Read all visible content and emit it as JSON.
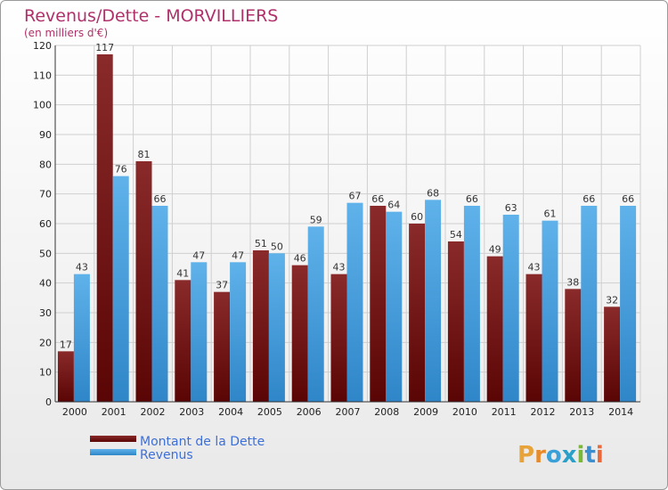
{
  "chart_data": {
    "type": "bar",
    "title": "Revenus/Dette - MORVILLIERS",
    "subtitle": "(en milliers d'€)",
    "xlabel": "",
    "ylabel": "",
    "ylim": [
      0,
      120
    ],
    "yticks": [
      0,
      10,
      20,
      30,
      40,
      50,
      60,
      70,
      80,
      90,
      100,
      110,
      120
    ],
    "grid": true,
    "legend_position": "bottom-left",
    "categories": [
      "2000",
      "2001",
      "2002",
      "2003",
      "2004",
      "2005",
      "2006",
      "2007",
      "2008",
      "2009",
      "2010",
      "2011",
      "2012",
      "2013",
      "2014"
    ],
    "series": [
      {
        "name": "Montant de la Dette",
        "color": "#7a1a1a",
        "values": [
          17,
          117,
          81,
          41,
          37,
          51,
          46,
          43,
          66,
          60,
          54,
          49,
          43,
          38,
          32
        ]
      },
      {
        "name": "Revenus",
        "color": "#4aa3e0",
        "values": [
          43,
          76,
          66,
          47,
          47,
          50,
          59,
          67,
          64,
          68,
          66,
          63,
          61,
          66,
          66
        ]
      }
    ]
  },
  "logo": {
    "text": "Proxiti"
  }
}
